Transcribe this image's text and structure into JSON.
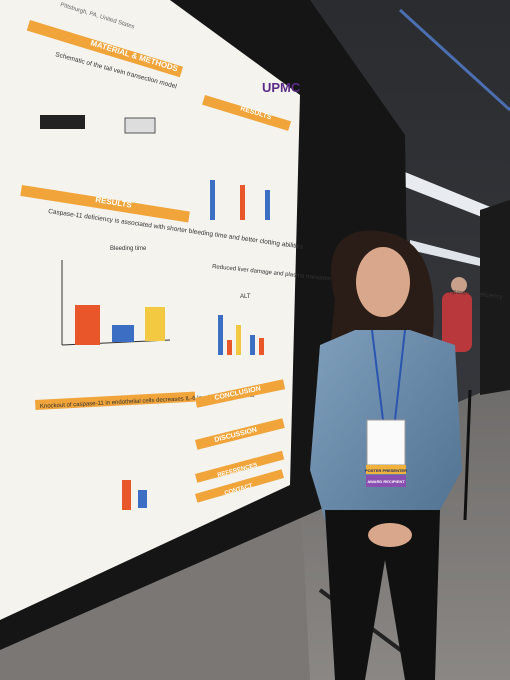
{
  "poster": {
    "location": "Pittsburgh, PA, United States",
    "logo": "UPMC",
    "methods_heading": "MATERIAL & METHODS",
    "methods_caption": "Schematic of the tail vein transection model",
    "results_heading_left": "RESULTS",
    "finding_1": "Caspase-11 deficiency is associated with shorter bleeding time and better clotting abilities",
    "chart_1_title": "Bleeding time",
    "finding_2": "Knockout of caspase-11 in endothelial cells decreases IL-6 levels 6h post trauma",
    "results_heading_right": "RESULTS",
    "finding_3": "Reduced liver damage and plasma transaminase (ALT) levels 6 hours post-trauma with caspase-11 deficiency",
    "chart_2_title": "ALT",
    "conclusion_heading": "CONCLUSION",
    "discussion_heading": "DISCUSSION",
    "references_heading": "REFERENCES",
    "contact_heading": "CONTACT"
  },
  "badge": {
    "ribbon_1": "POSTER PRESENTER",
    "ribbon_2": "AWARD RECIPIENT"
  }
}
